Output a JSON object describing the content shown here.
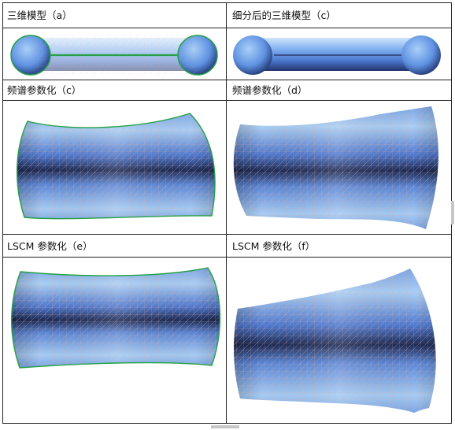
{
  "captions": {
    "a": "三维模型（a）",
    "b": "细分后的三维模型（c）",
    "c": "频谱参数化（c）",
    "d": "频谱参数化（d）",
    "e": "LSCM 参数化（e）",
    "f": "LSCM 参数化（f）"
  },
  "colors": {
    "surface_light": "#9cc8f6",
    "surface_mid": "#5f8fe0",
    "surface_dark": "#1c2a52",
    "boundary": "#22a046",
    "mesh_line": "#e3a9a0"
  }
}
